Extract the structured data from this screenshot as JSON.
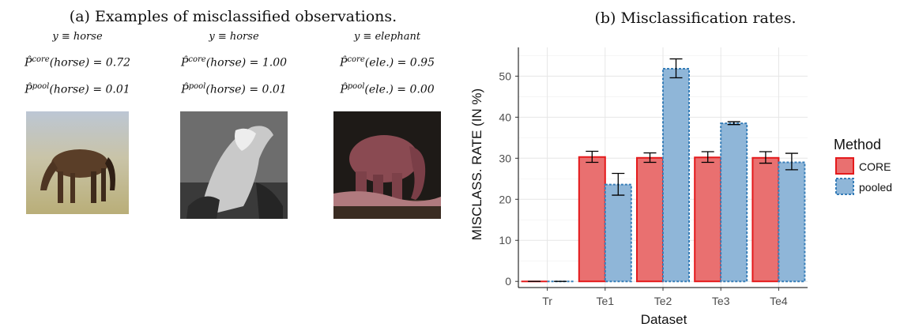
{
  "left_panel": {
    "caption": "(a) Examples of misclassified observations.",
    "examples": [
      {
        "label": "y ≡ horse",
        "core_prob_label": "P̂",
        "core_sup": "core",
        "core_arg": "(horse) = 0.72",
        "pool_prob_label": "P̂",
        "pool_sup": "pool",
        "pool_arg": "(horse) = 0.01",
        "image": "horse-grazing-photo"
      },
      {
        "label": "y ≡ horse",
        "core_prob_label": "P̂",
        "core_sup": "core",
        "core_arg": "(horse) = 1.00",
        "pool_prob_label": "P̂",
        "pool_sup": "pool",
        "pool_arg": "(horse) = 0.01",
        "image": "grayscale-horse-photo"
      },
      {
        "label": "y ≡ elephant",
        "core_prob_label": "P̂",
        "core_sup": "core",
        "core_arg": "(ele.) = 0.95",
        "pool_prob_label": "P̂",
        "pool_sup": "pool",
        "pool_arg": "(ele.) = 0.00",
        "image": "elephant-photo"
      }
    ]
  },
  "right_panel": {
    "caption": "(b) Misclassification rates."
  },
  "chart_data": {
    "type": "bar",
    "categories": [
      "Tr",
      "Te1",
      "Te2",
      "Te3",
      "Te4"
    ],
    "series": [
      {
        "name": "CORE",
        "values": [
          0,
          30.3,
          30.1,
          30.2,
          30.1
        ],
        "err_low": [
          0,
          29.0,
          29.0,
          29.0,
          28.8
        ],
        "err_high": [
          0,
          31.7,
          31.3,
          31.6,
          31.6
        ],
        "fill": "#e97070",
        "stroke": "#e41a1c",
        "dash": false
      },
      {
        "name": "pooled",
        "values": [
          0,
          23.6,
          51.8,
          38.5,
          29.0
        ],
        "err_low": [
          0,
          21.0,
          49.6,
          38.2,
          27.2
        ],
        "err_high": [
          0,
          26.3,
          54.2,
          38.9,
          31.2
        ],
        "fill": "#8fb6d8",
        "stroke": "#377eb8",
        "dash": true
      }
    ],
    "xlabel": "Dataset",
    "ylabel": "MISCLASS. RATE (IN %)",
    "ylim": [
      -1.5,
      57
    ],
    "yticks": [
      0,
      10,
      20,
      30,
      40,
      50
    ],
    "grid": true,
    "legend": {
      "title": "Method",
      "position": "right"
    }
  }
}
